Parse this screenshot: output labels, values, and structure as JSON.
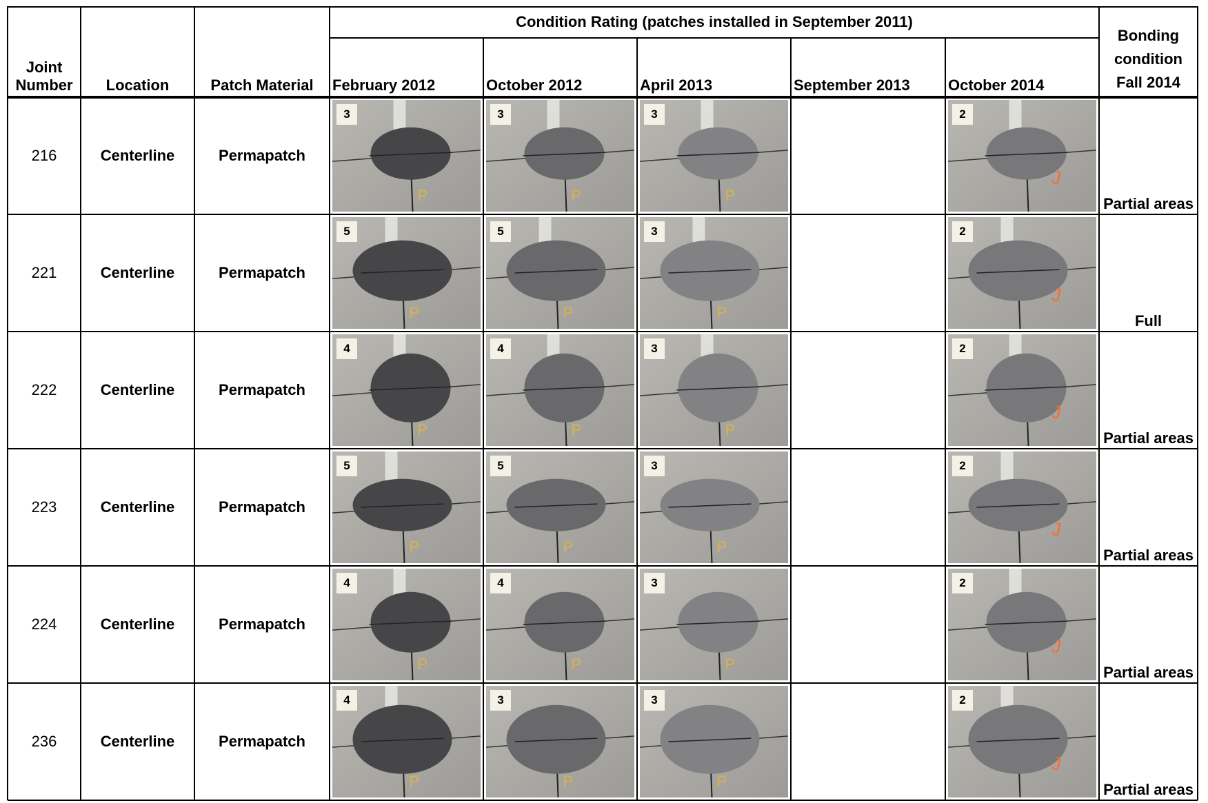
{
  "header": {
    "joint_number": "Joint Number",
    "location": "Location",
    "patch_material": "Patch Material",
    "condition_rating": "Condition Rating (patches installed in September 2011)",
    "dates": [
      "February 2012",
      "October 2012",
      "April 2013",
      "September 2013",
      "October 2014"
    ],
    "bonding": "Bonding condition Fall 2014"
  },
  "rows": [
    {
      "joint": "216",
      "location": "Centerline",
      "material": "Permapatch",
      "ratings": [
        3,
        3,
        3,
        null,
        2
      ],
      "bonding": "Partial areas"
    },
    {
      "joint": "221",
      "location": "Centerline",
      "material": "Permapatch",
      "ratings": [
        5,
        5,
        3,
        null,
        2
      ],
      "bonding": "Full"
    },
    {
      "joint": "222",
      "location": "Centerline",
      "material": "Permapatch",
      "ratings": [
        4,
        4,
        3,
        null,
        2
      ],
      "bonding": "Partial areas"
    },
    {
      "joint": "223",
      "location": "Centerline",
      "material": "Permapatch",
      "ratings": [
        5,
        5,
        3,
        null,
        2
      ],
      "bonding": "Partial areas"
    },
    {
      "joint": "224",
      "location": "Centerline",
      "material": "Permapatch",
      "ratings": [
        4,
        4,
        3,
        null,
        2
      ],
      "bonding": "Partial areas"
    },
    {
      "joint": "236",
      "location": "Centerline",
      "material": "Permapatch",
      "ratings": [
        4,
        3,
        3,
        null,
        2
      ],
      "bonding": "Partial areas"
    }
  ]
}
